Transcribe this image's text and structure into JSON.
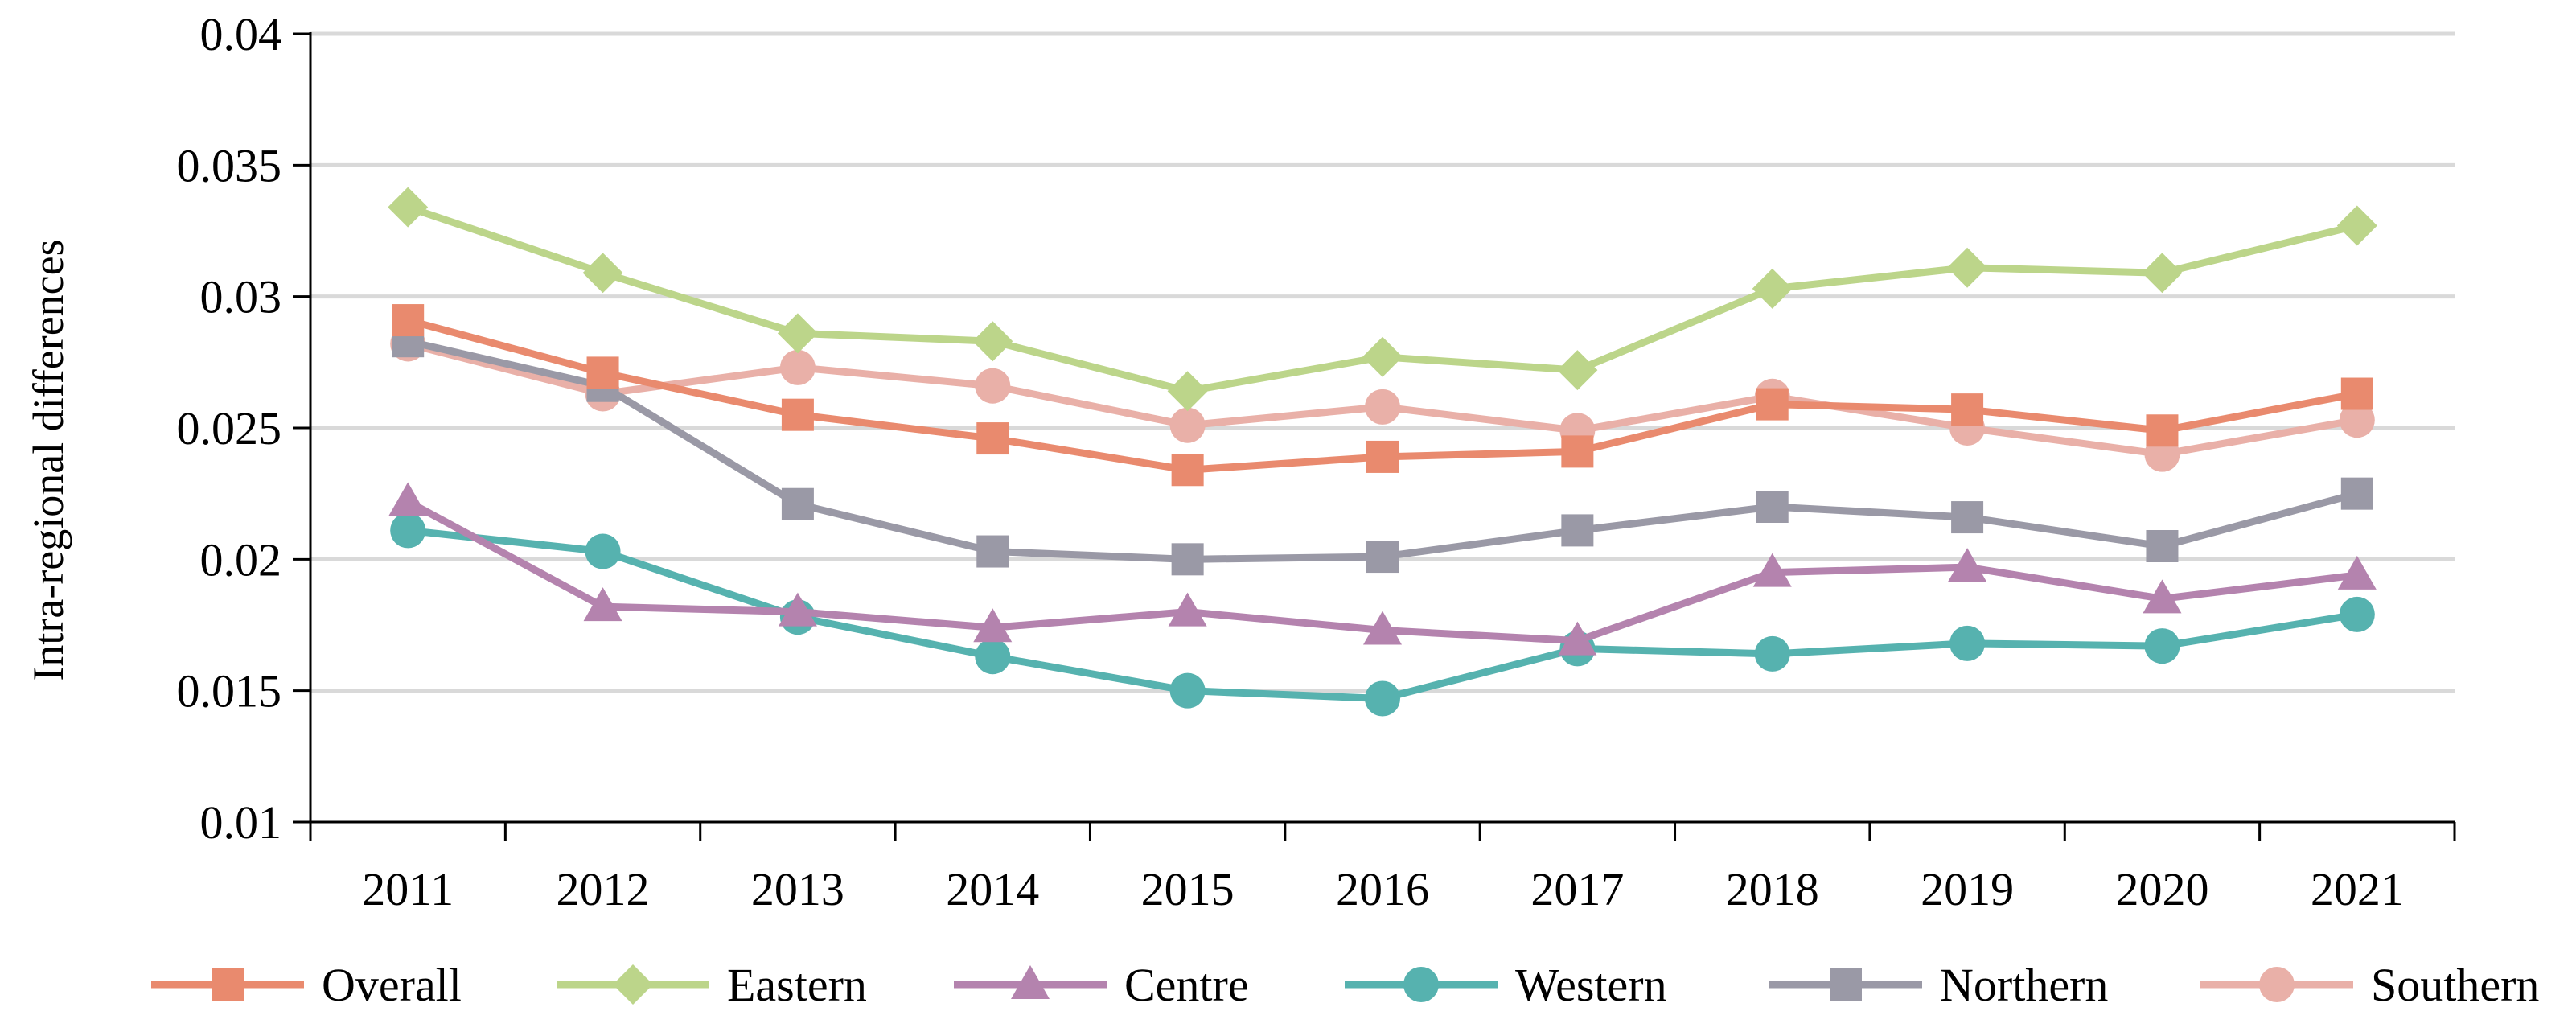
{
  "chart_data": {
    "type": "line",
    "title": "",
    "xlabel": "",
    "ylabel": "Intra-regional differences",
    "ylim": [
      0.01,
      0.04
    ],
    "yticks": [
      "0.01",
      "0.015",
      "0.02",
      "0.025",
      "0.03",
      "0.035",
      "0.04"
    ],
    "grid": true,
    "legend_position": "bottom",
    "categories": [
      "2011",
      "2012",
      "2013",
      "2014",
      "2015",
      "2016",
      "2017",
      "2018",
      "2019",
      "2020",
      "2021"
    ],
    "series": [
      {
        "name": "Overall",
        "marker": "square",
        "color": "#E98A6E",
        "values": [
          0.0291,
          0.0271,
          0.0255,
          0.0246,
          0.0234,
          0.0239,
          0.0241,
          0.0259,
          0.0257,
          0.0249,
          0.0263
        ]
      },
      {
        "name": "Eastern",
        "marker": "diamond",
        "color": "#BCD58A",
        "values": [
          0.0334,
          0.0309,
          0.0286,
          0.0283,
          0.0264,
          0.0277,
          0.0272,
          0.0303,
          0.0311,
          0.0309,
          0.0327
        ]
      },
      {
        "name": "Centre",
        "marker": "triangle",
        "color": "#B483AE",
        "values": [
          0.0222,
          0.0182,
          0.018,
          0.0174,
          0.018,
          0.0173,
          0.0169,
          0.0195,
          0.0197,
          0.0185,
          0.0194
        ]
      },
      {
        "name": "Western",
        "marker": "circle",
        "color": "#56B2AF",
        "values": [
          0.0211,
          0.0203,
          0.0178,
          0.0163,
          0.015,
          0.0147,
          0.0166,
          0.0164,
          0.0168,
          0.0167,
          0.0179
        ]
      },
      {
        "name": "Northern",
        "marker": "square",
        "color": "#9A99A6",
        "values": [
          0.0283,
          0.0266,
          0.0221,
          0.0203,
          0.02,
          0.0201,
          0.0211,
          0.022,
          0.0216,
          0.0205,
          0.0225
        ]
      },
      {
        "name": "Southern",
        "marker": "circle",
        "color": "#E9B0A8",
        "values": [
          0.0282,
          0.0263,
          0.0273,
          0.0266,
          0.0251,
          0.0258,
          0.0249,
          0.0262,
          0.025,
          0.024,
          0.0253
        ]
      }
    ],
    "draw_order": [
      "Southern",
      "Northern",
      "Western",
      "Centre",
      "Eastern",
      "Overall"
    ]
  }
}
